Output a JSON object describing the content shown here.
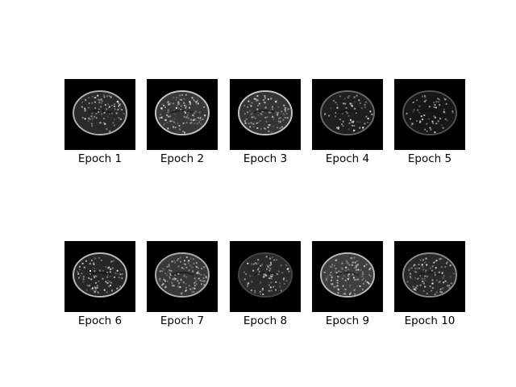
{
  "panels": [
    {
      "caption": "Epoch 1"
    },
    {
      "caption": "Epoch 2"
    },
    {
      "caption": "Epoch 3"
    },
    {
      "caption": "Epoch 4"
    },
    {
      "caption": "Epoch 5"
    },
    {
      "caption": "Epoch 6"
    },
    {
      "caption": "Epoch 7"
    },
    {
      "caption": "Epoch 8"
    },
    {
      "caption": "Epoch 9"
    },
    {
      "caption": "Epoch 10"
    }
  ],
  "colors": {
    "background": "#ffffff",
    "scan_background": "#000000",
    "tissue": "#bfbfbf"
  }
}
